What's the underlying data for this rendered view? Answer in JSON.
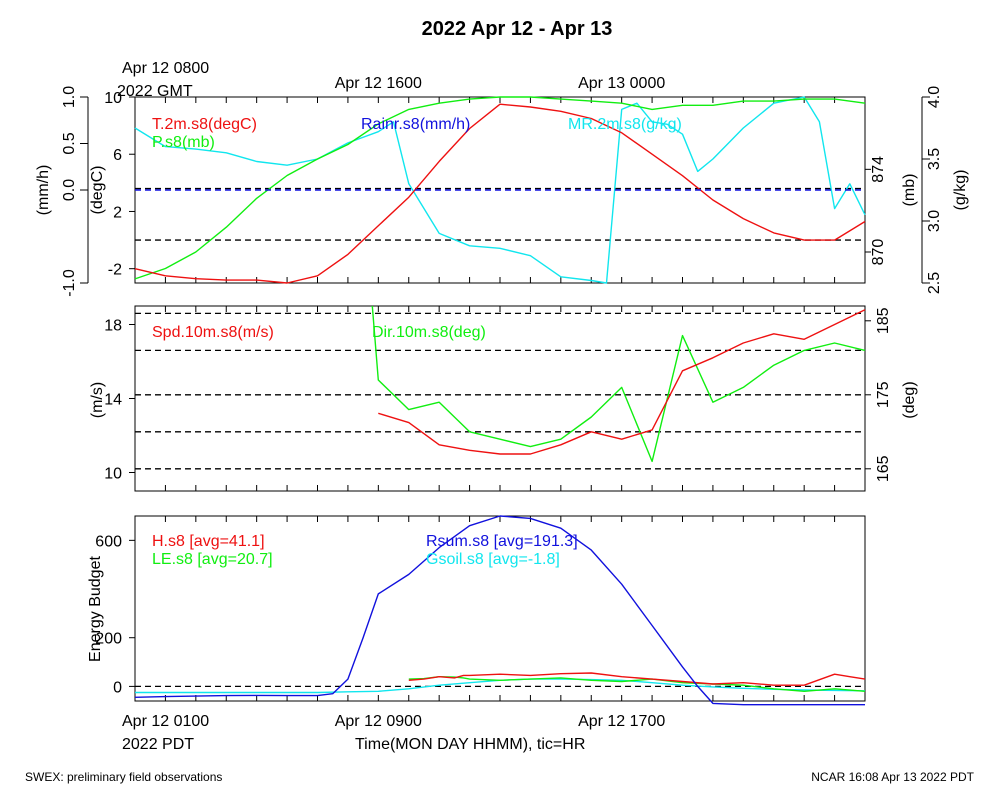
{
  "title": "2022 Apr 12 - Apr 13",
  "footer_left": "SWEX: preliminary field observations",
  "footer_right": "NCAR 16:08 Apr 13 2022 PDT",
  "top_axis": {
    "corner": [
      "Apr 12 0800",
      "2022 GMT"
    ],
    "labels": [
      {
        "hour": 8,
        "text": "Apr 12 1600"
      },
      {
        "hour": 16,
        "text": "Apr 13 0000"
      }
    ]
  },
  "bottom_axis": {
    "corner": [
      "Apr 12 0100",
      "2022 PDT"
    ],
    "labels": [
      {
        "hour": 8,
        "text": "Apr 12 0900"
      },
      {
        "hour": 16,
        "text": "Apr 12 1700"
      }
    ],
    "title": "Time(MON DAY HHMM), tic=HR"
  },
  "colors": {
    "red": "#ee1111",
    "green": "#11ee11",
    "blue": "#1111dd",
    "cyan": "#11e6ee",
    "black": "#000000"
  },
  "chart_data": [
    {
      "type": "line",
      "x_unit": "hours since Apr 12 0100 PDT",
      "xlim": [
        0,
        24
      ],
      "axes": {
        "rain": {
          "label": "(mm/h)",
          "lim": [
            -1,
            1
          ],
          "ticks": [
            -1.0,
            0.0,
            0.5,
            1.0
          ],
          "tick_text": [
            "-1.0",
            "0.0",
            "0.5",
            "1.0"
          ]
        },
        "temp": {
          "label": "(degC)",
          "lim": [
            -3,
            10
          ],
          "ticks": [
            -2,
            2,
            6,
            10
          ]
        },
        "pres": {
          "label": "(mb)",
          "lim": [
            868.5,
            877.5
          ],
          "ticks": [
            870,
            874
          ]
        },
        "mr": {
          "label": "(g/kg)",
          "lim": [
            2.5,
            4.0
          ],
          "ticks": [
            2.5,
            3.0,
            3.5,
            4.0
          ],
          "tick_text": [
            "2.5",
            "3.0",
            "3.5",
            "4.0"
          ]
        }
      },
      "reference_lines": [
        {
          "axis": "temp",
          "value": 3.6
        },
        {
          "axis": "temp",
          "value": 0
        }
      ],
      "series": [
        {
          "name": "T.2m.s8(degC)",
          "axis": "temp",
          "color": "red",
          "x": [
            0,
            1,
            2,
            3,
            4,
            5,
            6,
            7,
            8,
            9,
            10,
            11,
            12,
            13,
            14,
            15,
            16,
            17,
            18,
            19,
            20,
            21,
            22,
            23,
            24
          ],
          "y": [
            -2.0,
            -2.5,
            -2.7,
            -2.8,
            -2.8,
            -3.0,
            -2.5,
            -1.0,
            1.0,
            3.0,
            5.5,
            7.8,
            9.5,
            9.3,
            9.0,
            8.5,
            7.5,
            6.0,
            4.5,
            2.8,
            1.5,
            0.5,
            0.0,
            0.0,
            1.3
          ]
        },
        {
          "name": "P.s8(mb)",
          "axis": "pres",
          "color": "green",
          "x": [
            0,
            1,
            2,
            3,
            4,
            5,
            6,
            7,
            8,
            9,
            10,
            11,
            12,
            13,
            14,
            15,
            16,
            17,
            18,
            19,
            20,
            21,
            22,
            23,
            24
          ],
          "y": [
            868.7,
            869.2,
            870.0,
            871.2,
            872.6,
            873.7,
            874.5,
            875.2,
            876.2,
            876.9,
            877.2,
            877.4,
            877.5,
            877.5,
            877.4,
            877.3,
            877.2,
            876.9,
            877.1,
            877.1,
            877.3,
            877.3,
            877.4,
            877.4,
            877.2
          ]
        },
        {
          "name": "MR.2m.s8(g/kg)",
          "axis": "mr",
          "color": "cyan",
          "x": [
            0,
            1,
            2,
            3,
            4,
            5,
            6,
            7,
            8,
            8.5,
            9,
            10,
            11,
            12,
            13,
            14,
            15,
            15.5,
            16,
            16.5,
            17,
            17.5,
            18,
            18.5,
            19,
            20,
            21,
            22,
            22.5,
            23,
            23.5,
            24
          ],
          "y": [
            3.75,
            3.6,
            3.58,
            3.55,
            3.48,
            3.45,
            3.5,
            3.63,
            3.72,
            3.8,
            3.3,
            2.9,
            2.8,
            2.78,
            2.72,
            2.55,
            2.52,
            2.5,
            3.9,
            3.95,
            3.8,
            3.78,
            3.7,
            3.4,
            3.5,
            3.75,
            3.95,
            4.0,
            3.8,
            3.1,
            3.3,
            3.05
          ]
        },
        {
          "name": "Rainr.s8(mm/h)",
          "axis": "rain",
          "color": "blue",
          "x": [
            0,
            24
          ],
          "y": [
            0.0,
            0.0
          ]
        }
      ]
    },
    {
      "type": "line",
      "xlim": [
        0,
        24
      ],
      "axes": {
        "spd": {
          "label": "(m/s)",
          "lim": [
            9,
            19
          ],
          "ticks": [
            10,
            14,
            18
          ]
        },
        "dir": {
          "label": "(deg)",
          "lim": [
            162,
            187
          ],
          "ticks": [
            165,
            175,
            185
          ]
        }
      },
      "reference_lines": [
        {
          "axis": "dir",
          "value": 165
        },
        {
          "axis": "dir",
          "value": 170
        },
        {
          "axis": "dir",
          "value": 175
        },
        {
          "axis": "dir",
          "value": 181
        },
        {
          "axis": "dir",
          "value": 186
        }
      ],
      "series": [
        {
          "name": "Spd.10m.s8(m/s)",
          "axis": "spd",
          "color": "red",
          "x": [
            8,
            9,
            10,
            11,
            12,
            13,
            14,
            15,
            16,
            17,
            18,
            19,
            20,
            21,
            22,
            23,
            24
          ],
          "y": [
            13.2,
            12.7,
            11.5,
            11.2,
            11.0,
            11.0,
            11.5,
            12.2,
            11.8,
            12.3,
            15.5,
            16.2,
            17.0,
            17.5,
            17.2,
            18.0,
            18.8
          ]
        },
        {
          "name": "Dir.10m.s8(deg)",
          "axis": "dir",
          "color": "green",
          "x": [
            7.8,
            8,
            9,
            10,
            11,
            12,
            13,
            14,
            15,
            16,
            17,
            18,
            19,
            20,
            21,
            22,
            23,
            24
          ],
          "y": [
            187,
            177,
            173,
            174,
            170,
            169,
            168,
            169,
            172,
            176,
            166,
            183,
            174,
            176,
            179,
            181,
            182,
            181
          ]
        }
      ]
    },
    {
      "type": "line",
      "ylabel": "Energy Budget",
      "xlim": [
        0,
        24
      ],
      "ylim": [
        -60,
        700
      ],
      "yticks": [
        0,
        200,
        600
      ],
      "reference_lines": [
        {
          "value": 0
        }
      ],
      "legend": [
        {
          "text": "H.s8 [avg=41.1]",
          "color": "red",
          "col": 0
        },
        {
          "text": "LE.s8 [avg=20.7]",
          "color": "green",
          "col": 0
        },
        {
          "text": "Rsum.s8 [avg=191.3]",
          "color": "blue",
          "col": 1
        },
        {
          "text": "Gsoil.s8 [avg=-1.8]",
          "color": "cyan",
          "col": 1
        }
      ],
      "series": [
        {
          "name": "Rsum.s8",
          "color": "blue",
          "x": [
            0,
            1,
            2,
            3,
            4,
            5,
            6,
            6.5,
            7,
            7.5,
            8,
            9,
            10,
            11,
            12,
            13,
            14,
            15,
            16,
            17,
            18,
            18.5,
            19,
            20,
            21,
            22,
            23,
            24
          ],
          "y": [
            -45,
            -42,
            -40,
            -38,
            -37,
            -38,
            -38,
            -30,
            30,
            200,
            380,
            460,
            570,
            660,
            700,
            690,
            650,
            560,
            420,
            250,
            80,
            0,
            -70,
            -75,
            -75,
            -75,
            -75,
            -75
          ]
        },
        {
          "name": "H.s8",
          "color": "red",
          "x": [
            9,
            9.5,
            10,
            10.5,
            10.8,
            11,
            12,
            13,
            14,
            15,
            16,
            17,
            18,
            19,
            20,
            21,
            22,
            23,
            23.5,
            24
          ],
          "y": [
            25,
            30,
            40,
            35,
            45,
            45,
            50,
            45,
            52,
            55,
            40,
            30,
            20,
            10,
            15,
            5,
            5,
            50,
            40,
            30
          ]
        },
        {
          "name": "LE.s8",
          "color": "green",
          "x": [
            9,
            9.5,
            10,
            10.5,
            10.8,
            11,
            12,
            13,
            14,
            15,
            16,
            17,
            18,
            19,
            20,
            21,
            22,
            23,
            24
          ],
          "y": [
            30,
            32,
            40,
            38,
            35,
            30,
            25,
            30,
            35,
            25,
            20,
            30,
            15,
            10,
            5,
            -10,
            -20,
            -10,
            -20
          ]
        },
        {
          "name": "Gsoil.s8",
          "color": "cyan",
          "x": [
            0,
            6,
            7,
            8,
            9,
            10,
            11,
            12,
            13,
            14,
            15,
            16,
            17,
            18,
            19,
            20,
            21,
            22,
            24
          ],
          "y": [
            -25,
            -25,
            -22,
            -20,
            -10,
            5,
            15,
            25,
            30,
            30,
            28,
            25,
            15,
            5,
            -2,
            -8,
            -12,
            -15,
            -18
          ]
        }
      ]
    }
  ]
}
